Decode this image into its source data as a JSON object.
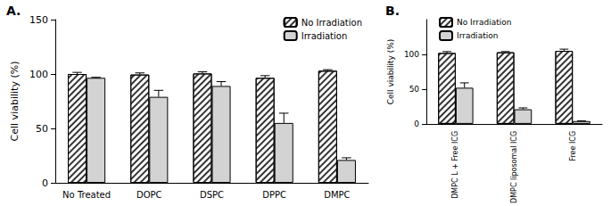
{
  "chart_data": [
    {
      "type": "bar",
      "title": "A.",
      "y_label": "Cell viability (%)",
      "categories": [
        "No Treated",
        "DOPC",
        "DSPC",
        "DPPC",
        "DMPC"
      ],
      "series": [
        {
          "name": "No Irradiation",
          "color": "#ffffff",
          "values": [
            100,
            99.5,
            100.5,
            96.5,
            103
          ],
          "errors": [
            1.5,
            1.5,
            1.5,
            2,
            1
          ]
        },
        {
          "name": "Irradiation",
          "color": "#d3d3d3",
          "values": [
            96.5,
            79,
            89,
            55,
            21
          ],
          "errors": [
            0.5,
            6,
            4,
            9,
            2
          ]
        }
      ],
      "ylim": [
        0,
        150
      ],
      "yticks": [
        0,
        50,
        100,
        150
      ],
      "grid": false,
      "legend": "upper right"
    },
    {
      "type": "bar",
      "title": "B.",
      "y_label": "Cell viability (%)",
      "categories": [
        "DMPC L + Free ICG",
        "DMPC liposomal ICG",
        "Free ICG"
      ],
      "series": [
        {
          "name": "No Irradiation",
          "color": "#ffffff",
          "values": [
            102,
            103,
            105
          ],
          "errors": [
            2,
            1,
            2.5
          ]
        },
        {
          "name": "Irradiation",
          "color": "#d3d3d3",
          "values": [
            52,
            21,
            4
          ],
          "errors": [
            7,
            2,
            0.5
          ]
        }
      ],
      "ylim": [
        0,
        150
      ],
      "yticks": [
        0,
        50,
        100
      ],
      "grid": false,
      "legend": "upper left"
    }
  ]
}
